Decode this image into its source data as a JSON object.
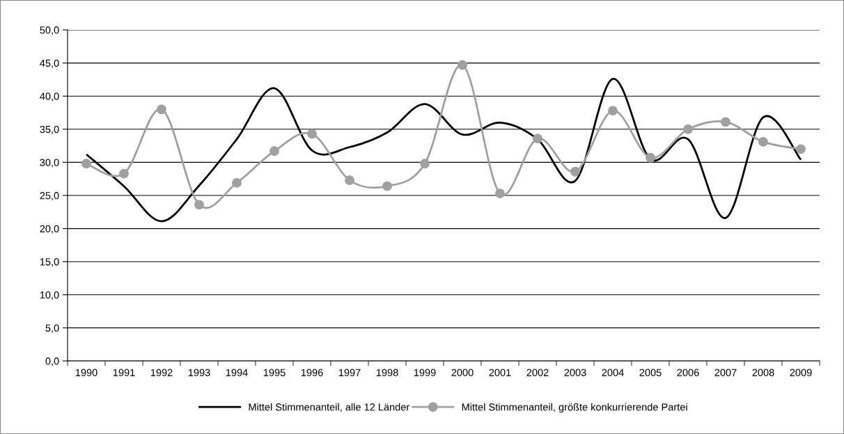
{
  "chart_data": {
    "type": "line",
    "categories": [
      "1990",
      "1991",
      "1992",
      "1993",
      "1994",
      "1995",
      "1996",
      "1997",
      "1998",
      "1999",
      "2000",
      "2001",
      "2002",
      "2003",
      "2004",
      "2005",
      "2006",
      "2007",
      "2008",
      "2009"
    ],
    "series": [
      {
        "name": "Mittel Stimmenanteil, alle 12 Länder",
        "color": "#000000",
        "marker": "none",
        "values": [
          31.2,
          26.4,
          21.1,
          26.5,
          33.5,
          41.2,
          31.8,
          32.3,
          34.5,
          38.8,
          34.2,
          36.0,
          33.5,
          27.2,
          42.6,
          30.5,
          33.5,
          21.6,
          36.8,
          30.4
        ]
      },
      {
        "name": "Mittel Stimmenanteil, größte konkurrierende Partei",
        "color": "#a0a0a0",
        "marker": "circle",
        "values": [
          29.8,
          28.3,
          38.0,
          23.6,
          26.9,
          31.7,
          34.3,
          27.3,
          26.4,
          29.8,
          44.7,
          25.3,
          33.6,
          28.6,
          37.8,
          30.7,
          35.0,
          36.1,
          33.1,
          32.0
        ]
      }
    ],
    "ylim": [
      0,
      50
    ],
    "yticks": [
      {
        "value": 0,
        "label": "0,0"
      },
      {
        "value": 5,
        "label": "5,0"
      },
      {
        "value": 10,
        "label": "10,0"
      },
      {
        "value": 15,
        "label": "15,0"
      },
      {
        "value": 20,
        "label": "20,0"
      },
      {
        "value": 25,
        "label": "25,0"
      },
      {
        "value": 30,
        "label": "30,0"
      },
      {
        "value": 35,
        "label": "35,0"
      },
      {
        "value": 40,
        "label": "40,0"
      },
      {
        "value": 45,
        "label": "45,0"
      },
      {
        "value": 50,
        "label": "50,0"
      }
    ],
    "grid": "y",
    "legend": "bottom",
    "line_style": "solid"
  }
}
